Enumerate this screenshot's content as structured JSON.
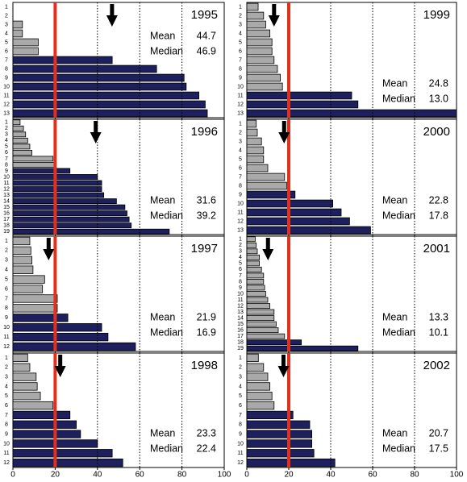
{
  "chart_data": [
    {
      "type": "bar",
      "title": "1995",
      "categories": [
        "1",
        "2",
        "3",
        "4",
        "5",
        "6",
        "7",
        "8",
        "9",
        "10",
        "11",
        "12",
        "13"
      ],
      "values": [
        0,
        0,
        4.5,
        4.5,
        12,
        12,
        47,
        68,
        81,
        82,
        88,
        91,
        92
      ],
      "colors": [
        "#a9a9a9",
        "#a9a9a9",
        "#a9a9a9",
        "#a9a9a9",
        "#a9a9a9",
        "#a9a9a9",
        "#1d205c",
        "#1d205c",
        "#1d205c",
        "#1d205c",
        "#1d205c",
        "#1d205c",
        "#1d205c"
      ],
      "stats": [
        {
          "name": "Mean",
          "value": 44.7,
          "label": "44.7"
        },
        {
          "name": "Median",
          "value": 46.9,
          "label": "46.9"
        }
      ],
      "reference_line": 20,
      "xlim": [
        0,
        100
      ],
      "xticks": [
        0,
        20,
        40,
        60,
        80,
        100
      ]
    },
    {
      "type": "bar",
      "title": "1996",
      "categories": [
        "1",
        "2",
        "3",
        "4",
        "5",
        "6",
        "7",
        "8",
        "9",
        "10",
        "11",
        "12",
        "13",
        "14",
        "15",
        "16",
        "17",
        "18",
        "19"
      ],
      "values": [
        3.4,
        5,
        6,
        7,
        8,
        9,
        19,
        20,
        27,
        40,
        42,
        42,
        43,
        49,
        53,
        54,
        55,
        56,
        74
      ],
      "colors": [
        "#a9a9a9",
        "#a9a9a9",
        "#a9a9a9",
        "#a9a9a9",
        "#a9a9a9",
        "#a9a9a9",
        "#a9a9a9",
        "#a9a9a9",
        "#1d205c",
        "#1d205c",
        "#1d205c",
        "#1d205c",
        "#1d205c",
        "#1d205c",
        "#1d205c",
        "#1d205c",
        "#1d205c",
        "#1d205c",
        "#1d205c"
      ],
      "stats": [
        {
          "name": "Mean",
          "value": 31.6,
          "label": "31.6"
        },
        {
          "name": "Median",
          "value": 39.2,
          "label": "39.2"
        }
      ],
      "reference_line": 20,
      "xlim": [
        0,
        100
      ],
      "xticks": [
        0,
        20,
        40,
        60,
        80,
        100
      ]
    },
    {
      "type": "bar",
      "title": "1997",
      "categories": [
        "1",
        "2",
        "3",
        "4",
        "5",
        "6",
        "7",
        "8",
        "9",
        "10",
        "11",
        "12"
      ],
      "values": [
        8,
        8.5,
        9,
        9.5,
        15,
        14,
        21,
        21,
        26,
        42,
        45,
        58
      ],
      "colors": [
        "#a9a9a9",
        "#a9a9a9",
        "#a9a9a9",
        "#a9a9a9",
        "#a9a9a9",
        "#a9a9a9",
        "#a9a9a9",
        "#a9a9a9",
        "#1d205c",
        "#1d205c",
        "#1d205c",
        "#1d205c"
      ],
      "stats": [
        {
          "name": "Mean",
          "value": 21.9,
          "label": "21.9"
        },
        {
          "name": "Median",
          "value": 16.9,
          "label": "16.9"
        }
      ],
      "reference_line": 20,
      "xlim": [
        0,
        100
      ],
      "xticks": [
        0,
        20,
        40,
        60,
        80,
        100
      ]
    },
    {
      "type": "bar",
      "title": "1998",
      "categories": [
        "1",
        "2",
        "3",
        "4",
        "5",
        "6",
        "7",
        "8",
        "9",
        "10",
        "11",
        "12"
      ],
      "values": [
        7,
        8,
        11,
        11.5,
        13,
        19,
        27,
        30,
        32,
        40,
        47,
        52
      ],
      "colors": [
        "#a9a9a9",
        "#a9a9a9",
        "#a9a9a9",
        "#a9a9a9",
        "#a9a9a9",
        "#a9a9a9",
        "#1d205c",
        "#1d205c",
        "#1d205c",
        "#1d205c",
        "#1d205c",
        "#1d205c"
      ],
      "stats": [
        {
          "name": "Mean",
          "value": 23.3,
          "label": "23.3"
        },
        {
          "name": "Median",
          "value": 22.4,
          "label": "22.4"
        }
      ],
      "reference_line": 20,
      "xlim": [
        0,
        100
      ],
      "xticks": [
        0,
        20,
        40,
        60,
        80,
        100
      ]
    },
    {
      "type": "bar",
      "title": "1999",
      "categories": [
        "1",
        "2",
        "3",
        "4",
        "5",
        "6",
        "7",
        "8",
        "9",
        "10",
        "11",
        "12",
        "13"
      ],
      "values": [
        5.4,
        8,
        9,
        11,
        12,
        12,
        13,
        14.6,
        16,
        17,
        50,
        53,
        100
      ],
      "colors": [
        "#a9a9a9",
        "#a9a9a9",
        "#a9a9a9",
        "#a9a9a9",
        "#a9a9a9",
        "#a9a9a9",
        "#a9a9a9",
        "#a9a9a9",
        "#a9a9a9",
        "#a9a9a9",
        "#1d205c",
        "#1d205c",
        "#1d205c"
      ],
      "stats": [
        {
          "name": "Mean",
          "value": 24.8,
          "label": "24.8"
        },
        {
          "name": "Median",
          "value": 13.0,
          "label": "13.0"
        }
      ],
      "reference_line": 20,
      "xlim": [
        0,
        100
      ],
      "xticks": [
        0,
        20,
        40,
        60,
        80,
        100
      ]
    },
    {
      "type": "bar",
      "title": "2000",
      "categories": [
        "1",
        "2",
        "3",
        "4",
        "5",
        "6",
        "7",
        "8",
        "9",
        "10",
        "11",
        "12",
        "13"
      ],
      "values": [
        4.5,
        5,
        7,
        8,
        8,
        10,
        18,
        19,
        23,
        41,
        45,
        49,
        59
      ],
      "colors": [
        "#a9a9a9",
        "#a9a9a9",
        "#a9a9a9",
        "#a9a9a9",
        "#a9a9a9",
        "#a9a9a9",
        "#a9a9a9",
        "#a9a9a9",
        "#1d205c",
        "#1d205c",
        "#1d205c",
        "#1d205c",
        "#1d205c"
      ],
      "stats": [
        {
          "name": "Mean",
          "value": 22.8,
          "label": "22.8"
        },
        {
          "name": "Median",
          "value": 17.8,
          "label": "17.8"
        }
      ],
      "reference_line": 20,
      "xlim": [
        0,
        100
      ],
      "xticks": [
        0,
        20,
        40,
        60,
        80,
        100
      ]
    },
    {
      "type": "bar",
      "title": "2001",
      "categories": [
        "1",
        "2",
        "3",
        "4",
        "5",
        "6",
        "7",
        "8",
        "9",
        "10",
        "11",
        "12",
        "13",
        "14",
        "15",
        "16",
        "17",
        "18",
        "19"
      ],
      "values": [
        4,
        4.5,
        5,
        6,
        6,
        7,
        8,
        8,
        8.5,
        9,
        10,
        11,
        13,
        13,
        14,
        15,
        18,
        26,
        53
      ],
      "colors": [
        "#a9a9a9",
        "#a9a9a9",
        "#a9a9a9",
        "#a9a9a9",
        "#a9a9a9",
        "#a9a9a9",
        "#a9a9a9",
        "#a9a9a9",
        "#a9a9a9",
        "#a9a9a9",
        "#a9a9a9",
        "#a9a9a9",
        "#a9a9a9",
        "#a9a9a9",
        "#a9a9a9",
        "#a9a9a9",
        "#a9a9a9",
        "#1d205c",
        "#1d205c"
      ],
      "stats": [
        {
          "name": "Mean",
          "value": 13.3,
          "label": "13.3"
        },
        {
          "name": "Median",
          "value": 10.1,
          "label": "10.1"
        }
      ],
      "reference_line": 20,
      "xlim": [
        0,
        100
      ],
      "xticks": [
        0,
        20,
        40,
        60,
        80,
        100
      ]
    },
    {
      "type": "bar",
      "title": "2002",
      "categories": [
        "1",
        "2",
        "3",
        "4",
        "5",
        "6",
        "7",
        "8",
        "9",
        "10",
        "11",
        "12"
      ],
      "values": [
        5.5,
        8,
        10,
        11,
        12,
        13,
        22,
        30,
        31,
        31,
        32,
        42
      ],
      "colors": [
        "#a9a9a9",
        "#a9a9a9",
        "#a9a9a9",
        "#a9a9a9",
        "#a9a9a9",
        "#a9a9a9",
        "#1d205c",
        "#1d205c",
        "#1d205c",
        "#1d205c",
        "#1d205c",
        "#1d205c"
      ],
      "stats": [
        {
          "name": "Mean",
          "value": 20.7,
          "label": "20.7"
        },
        {
          "name": "Median",
          "value": 17.5,
          "label": "17.5"
        }
      ],
      "reference_line": 20,
      "xlim": [
        0,
        100
      ],
      "xticks": [
        0,
        20,
        40,
        60,
        80,
        100
      ]
    }
  ]
}
